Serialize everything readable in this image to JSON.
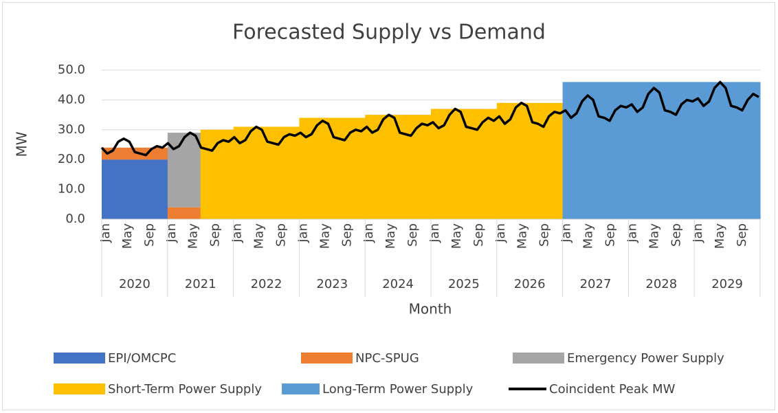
{
  "chart_data": {
    "type": "area",
    "title": "Forecasted Supply vs Demand",
    "y_label": "MW",
    "x_label": "Month",
    "categories": [
      "Jan",
      null,
      null,
      null,
      "May",
      null,
      null,
      null,
      "Sep",
      null,
      null,
      null,
      "Jan",
      null,
      null,
      null,
      "May",
      null,
      null,
      null,
      "Sep",
      null,
      null,
      null,
      "Jan",
      null,
      null,
      null,
      "May",
      null,
      null,
      null,
      "Sep",
      null,
      null,
      null,
      "Jan",
      null,
      null,
      null,
      "May",
      null,
      null,
      null,
      "Sep",
      null,
      null,
      null,
      "Jan",
      null,
      null,
      null,
      "May",
      null,
      null,
      null,
      "Sep",
      null,
      null,
      null,
      "Jan",
      null,
      null,
      null,
      "May",
      null,
      null,
      null,
      "Sep",
      null,
      null,
      null,
      "Jan",
      null,
      null,
      null,
      "May",
      null,
      null,
      null,
      "Sep",
      null,
      null,
      null,
      "Jan",
      null,
      null,
      null,
      "May",
      null,
      null,
      null,
      "Sep",
      null,
      null,
      null,
      "Jan",
      null,
      null,
      null,
      "May",
      null,
      null,
      null,
      "Sep",
      null,
      null,
      null,
      "Jan",
      null,
      null,
      null,
      "May",
      null,
      null,
      null,
      "Sep",
      null,
      null,
      null
    ],
    "years": [
      "2020",
      "2021",
      "2022",
      "2023",
      "2024",
      "2025",
      "2026",
      "2027",
      "2028",
      "2029"
    ],
    "ylim": [
      0,
      50
    ],
    "yticks": [
      {
        "value": 0,
        "label": "0.0"
      },
      {
        "value": 10,
        "label": "10.0"
      },
      {
        "value": 20,
        "label": "20.0"
      },
      {
        "value": 30,
        "label": "30.0"
      },
      {
        "value": 40,
        "label": "40.0"
      },
      {
        "value": 50,
        "label": "50.0"
      }
    ],
    "grid": true,
    "legend": "bottom",
    "series": [
      {
        "name": "EPI/OMCPC",
        "color": "#4472c4",
        "type": "area",
        "values": [
          20,
          20,
          20,
          20,
          20,
          20,
          20,
          20,
          20,
          20,
          20,
          20,
          0,
          0,
          0,
          0,
          0,
          0,
          0,
          0,
          0,
          0,
          0,
          0,
          0,
          0,
          0,
          0,
          0,
          0,
          0,
          0,
          0,
          0,
          0,
          0,
          0,
          0,
          0,
          0,
          0,
          0,
          0,
          0,
          0,
          0,
          0,
          0,
          0,
          0,
          0,
          0,
          0,
          0,
          0,
          0,
          0,
          0,
          0,
          0,
          0,
          0,
          0,
          0,
          0,
          0,
          0,
          0,
          0,
          0,
          0,
          0,
          0,
          0,
          0,
          0,
          0,
          0,
          0,
          0,
          0,
          0,
          0,
          0,
          0,
          0,
          0,
          0,
          0,
          0,
          0,
          0,
          0,
          0,
          0,
          0,
          0,
          0,
          0,
          0,
          0,
          0,
          0,
          0,
          0,
          0,
          0,
          0,
          0,
          0,
          0,
          0,
          0,
          0,
          0,
          0,
          0,
          0,
          0,
          0
        ]
      },
      {
        "name": "NPC-SPUG",
        "color": "#ed7d31",
        "type": "area",
        "values": [
          4,
          4,
          4,
          4,
          4,
          4,
          4,
          4,
          4,
          4,
          4,
          4,
          4,
          4,
          4,
          4,
          4,
          4,
          0,
          0,
          0,
          0,
          0,
          0,
          0,
          0,
          0,
          0,
          0,
          0,
          0,
          0,
          0,
          0,
          0,
          0,
          0,
          0,
          0,
          0,
          0,
          0,
          0,
          0,
          0,
          0,
          0,
          0,
          0,
          0,
          0,
          0,
          0,
          0,
          0,
          0,
          0,
          0,
          0,
          0,
          0,
          0,
          0,
          0,
          0,
          0,
          0,
          0,
          0,
          0,
          0,
          0,
          0,
          0,
          0,
          0,
          0,
          0,
          0,
          0,
          0,
          0,
          0,
          0,
          0,
          0,
          0,
          0,
          0,
          0,
          0,
          0,
          0,
          0,
          0,
          0,
          0,
          0,
          0,
          0,
          0,
          0,
          0,
          0,
          0,
          0,
          0,
          0,
          0,
          0,
          0,
          0,
          0,
          0,
          0,
          0,
          0,
          0,
          0,
          0
        ]
      },
      {
        "name": "Emergency Power Supply",
        "color": "#a5a5a5",
        "type": "area",
        "values": [
          0,
          0,
          0,
          0,
          0,
          0,
          0,
          0,
          0,
          0,
          0,
          0,
          25,
          25,
          25,
          25,
          25,
          25,
          0,
          0,
          0,
          0,
          0,
          0,
          0,
          0,
          0,
          0,
          0,
          0,
          0,
          0,
          0,
          0,
          0,
          0,
          0,
          0,
          0,
          0,
          0,
          0,
          0,
          0,
          0,
          0,
          0,
          0,
          0,
          0,
          0,
          0,
          0,
          0,
          0,
          0,
          0,
          0,
          0,
          0,
          0,
          0,
          0,
          0,
          0,
          0,
          0,
          0,
          0,
          0,
          0,
          0,
          0,
          0,
          0,
          0,
          0,
          0,
          0,
          0,
          0,
          0,
          0,
          0,
          0,
          0,
          0,
          0,
          0,
          0,
          0,
          0,
          0,
          0,
          0,
          0,
          0,
          0,
          0,
          0,
          0,
          0,
          0,
          0,
          0,
          0,
          0,
          0,
          0,
          0,
          0,
          0,
          0,
          0,
          0,
          0,
          0,
          0,
          0,
          0
        ]
      },
      {
        "name": "Short-Term Power Supply",
        "color": "#ffc000",
        "type": "area",
        "values": [
          0,
          0,
          0,
          0,
          0,
          0,
          0,
          0,
          0,
          0,
          0,
          0,
          0,
          0,
          0,
          0,
          0,
          0,
          30,
          30,
          30,
          30,
          30,
          30,
          31,
          31,
          31,
          31,
          31,
          31,
          31,
          31,
          31,
          31,
          31,
          31,
          34,
          34,
          34,
          34,
          34,
          34,
          34,
          34,
          34,
          34,
          34,
          34,
          35,
          35,
          35,
          35,
          35,
          35,
          35,
          35,
          35,
          35,
          35,
          35,
          37,
          37,
          37,
          37,
          37,
          37,
          37,
          37,
          37,
          37,
          37,
          37,
          39,
          39,
          39,
          39,
          39,
          39,
          39,
          39,
          39,
          39,
          39,
          39,
          0,
          0,
          0,
          0,
          0,
          0,
          0,
          0,
          0,
          0,
          0,
          0,
          0,
          0,
          0,
          0,
          0,
          0,
          0,
          0,
          0,
          0,
          0,
          0,
          0,
          0,
          0,
          0,
          0,
          0,
          0,
          0,
          0,
          0,
          0,
          0
        ]
      },
      {
        "name": "Long-Term Power Supply",
        "color": "#5b9bd5",
        "type": "area",
        "values": [
          0,
          0,
          0,
          0,
          0,
          0,
          0,
          0,
          0,
          0,
          0,
          0,
          0,
          0,
          0,
          0,
          0,
          0,
          0,
          0,
          0,
          0,
          0,
          0,
          0,
          0,
          0,
          0,
          0,
          0,
          0,
          0,
          0,
          0,
          0,
          0,
          0,
          0,
          0,
          0,
          0,
          0,
          0,
          0,
          0,
          0,
          0,
          0,
          0,
          0,
          0,
          0,
          0,
          0,
          0,
          0,
          0,
          0,
          0,
          0,
          0,
          0,
          0,
          0,
          0,
          0,
          0,
          0,
          0,
          0,
          0,
          0,
          0,
          0,
          0,
          0,
          0,
          0,
          0,
          0,
          0,
          0,
          0,
          0,
          46,
          46,
          46,
          46,
          46,
          46,
          46,
          46,
          46,
          46,
          46,
          46,
          46,
          46,
          46,
          46,
          46,
          46,
          46,
          46,
          46,
          46,
          46,
          46,
          46,
          46,
          46,
          46,
          46,
          46,
          46,
          46,
          46,
          46,
          46,
          46
        ]
      },
      {
        "name": "Coincident Peak MW",
        "color": "#000000",
        "type": "line",
        "values": [
          24,
          22,
          23,
          26,
          27,
          26,
          22.5,
          22,
          21.5,
          23.5,
          24.5,
          24,
          25.5,
          23.5,
          24.5,
          27.5,
          29,
          28,
          24,
          23.5,
          23,
          25.5,
          26.5,
          26,
          27.5,
          25.5,
          26.5,
          29.5,
          31,
          30,
          26,
          25.5,
          25,
          27.5,
          28.5,
          28,
          29,
          27.5,
          28.5,
          31.5,
          33,
          32,
          27.5,
          27,
          26.5,
          29,
          30,
          29.5,
          31,
          29,
          30,
          33.5,
          35,
          34,
          29,
          28.5,
          28,
          30.5,
          32,
          31.5,
          32.5,
          30.5,
          31.5,
          35,
          37,
          36,
          31,
          30.5,
          30,
          32.5,
          34,
          33,
          34.5,
          32,
          33.5,
          37.5,
          39,
          38,
          32.5,
          32,
          31,
          34.5,
          36,
          35.5,
          36.5,
          34,
          35.5,
          39.5,
          41.5,
          40,
          34.5,
          34,
          33,
          36.5,
          38,
          37.5,
          38.5,
          36,
          37.5,
          42,
          44,
          42.5,
          36.5,
          36,
          35,
          38.5,
          40,
          39.5,
          40.5,
          38,
          39.5,
          44,
          46,
          44,
          38,
          37.5,
          36.5,
          40,
          42,
          41
        ]
      }
    ]
  }
}
